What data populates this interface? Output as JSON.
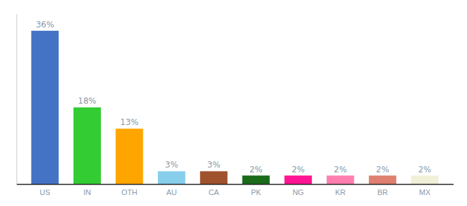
{
  "chart_data": {
    "type": "bar",
    "categories": [
      "US",
      "IN",
      "OTH",
      "AU",
      "CA",
      "PK",
      "NG",
      "KR",
      "BR",
      "MX"
    ],
    "values": [
      36,
      18,
      13,
      3,
      3,
      2,
      2,
      2,
      2,
      2
    ],
    "value_labels": [
      "36%",
      "18%",
      "13%",
      "3%",
      "3%",
      "2%",
      "2%",
      "2%",
      "2%",
      "2%"
    ],
    "data_labels": true,
    "colors": [
      "#4472c4",
      "#33cc33",
      "#ffa500",
      "#87ceeb",
      "#a0522d",
      "#1a6b1a",
      "#ff1493",
      "#ff80b0",
      "#e08070",
      "#f0f0d8"
    ],
    "ylim": [
      0,
      40
    ],
    "tick_labels": "x"
  }
}
